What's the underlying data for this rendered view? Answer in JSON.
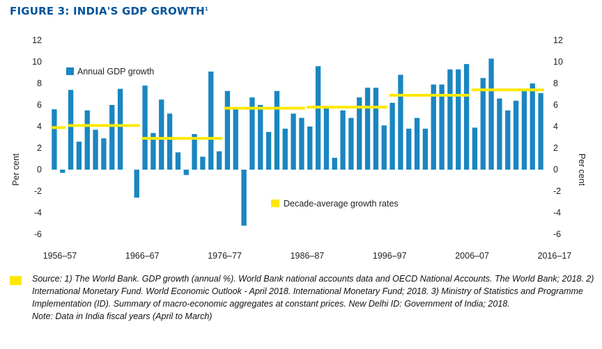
{
  "title": {
    "text": "FIGURE 3: INDIA'S GDP GROWTH",
    "superscript": "1"
  },
  "colors": {
    "title": "#00539b",
    "bar": "#1a86c1",
    "average": "#ffe800",
    "text": "#222222"
  },
  "chart_data": {
    "type": "bar",
    "ylabel_left": "Per cent",
    "ylabel_right": "Per cent",
    "ylim": [
      -6,
      12
    ],
    "yticks": [
      -6,
      -4,
      -2,
      0,
      2,
      4,
      6,
      8,
      10,
      12
    ],
    "grid": false,
    "x_start_year": 1956,
    "xtick_labels": [
      "1956–57",
      "1966–67",
      "1976–77",
      "1986–87",
      "1996–97",
      "2006–07",
      "2016–17"
    ],
    "series": [
      {
        "name": "Annual GDP growth",
        "type": "bar",
        "values": [
          5.6,
          -0.3,
          7.4,
          2.6,
          5.5,
          3.7,
          2.9,
          6.0,
          7.5,
          0.0,
          -2.6,
          7.8,
          3.4,
          6.5,
          5.2,
          1.6,
          -0.5,
          3.3,
          1.2,
          9.1,
          1.7,
          7.3,
          5.7,
          -5.2,
          6.7,
          6.0,
          3.5,
          7.3,
          3.8,
          5.2,
          4.8,
          4.0,
          9.6,
          5.9,
          1.1,
          5.5,
          4.8,
          6.7,
          7.6,
          7.6,
          4.1,
          6.2,
          8.8,
          3.8,
          4.8,
          3.8,
          7.9,
          7.9,
          9.3,
          9.3,
          9.8,
          3.9,
          8.5,
          10.3,
          6.6,
          5.5,
          6.4,
          7.4,
          8.0,
          7.1
        ]
      },
      {
        "name": "Decade-average growth rates",
        "type": "segments",
        "segments": [
          {
            "from": 0,
            "to": 2,
            "value": 3.9
          },
          {
            "from": 2,
            "to": 11,
            "value": 4.1
          },
          {
            "from": 11,
            "to": 21,
            "value": 2.9
          },
          {
            "from": 21,
            "to": 31,
            "value": 5.7
          },
          {
            "from": 31,
            "to": 41,
            "value": 5.8
          },
          {
            "from": 41,
            "to": 51,
            "value": 6.9
          },
          {
            "from": 51,
            "to": 60,
            "value": 7.4
          }
        ]
      }
    ],
    "legend": {
      "bars_label": "Annual GDP growth",
      "average_label": "Decade-average growth rates"
    }
  },
  "source": {
    "lines": [
      "Source: 1) The World Bank. GDP growth (annual %). World Bank national accounts data and OECD National Accounts. The World Bank; 2018. 2) International Monetary Fund. World Economic Outlook - April 2018. International Monetary Fund; 2018. 3) Ministry of Statistics and Programme Implementation (ID). Summary of macro-economic aggregates at constant prices. New Delhi ID: Government of India; 2018.",
      "Note: Data in India fiscal years (April to March)"
    ]
  }
}
